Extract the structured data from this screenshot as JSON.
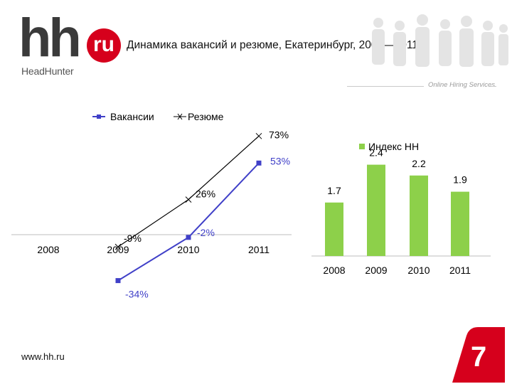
{
  "header": {
    "title": "Динамика вакансий и резюме, Екатеринбург, 2008—2011 г.",
    "logo_hh": "hh",
    "logo_ru": "ru",
    "logo_sub": "HeadHunter",
    "tagline": "Online Hiring Services"
  },
  "footer": {
    "url": "www.hh.ru",
    "page_number": "7"
  },
  "colors": {
    "vacancies": "#4040c8",
    "resumes": "#000000",
    "index_bar": "#8dd04a",
    "brand_red": "#d6001c"
  },
  "chart_data": [
    {
      "type": "line",
      "categories": [
        "2008",
        "2009",
        "2010",
        "2011"
      ],
      "series": [
        {
          "name": "Вакансии",
          "values": [
            null,
            -34,
            -2,
            53
          ],
          "labels": [
            "",
            "-34%",
            "-2%",
            "53%"
          ],
          "marker": "square"
        },
        {
          "name": "Резюме",
          "values": [
            null,
            -9,
            26,
            73
          ],
          "labels": [
            "",
            "-9%",
            "26%",
            "73%"
          ],
          "marker": "x"
        }
      ],
      "legend": "top",
      "grid": false
    },
    {
      "type": "bar",
      "categories": [
        "2008",
        "2009",
        "2010",
        "2011"
      ],
      "series": [
        {
          "name": "Индекс HH",
          "values": [
            1.7,
            2.4,
            2.2,
            1.9
          ],
          "labels": [
            "1.7",
            "2.4",
            "2.2",
            "1.9"
          ]
        }
      ],
      "legend": "top",
      "grid": false
    }
  ]
}
